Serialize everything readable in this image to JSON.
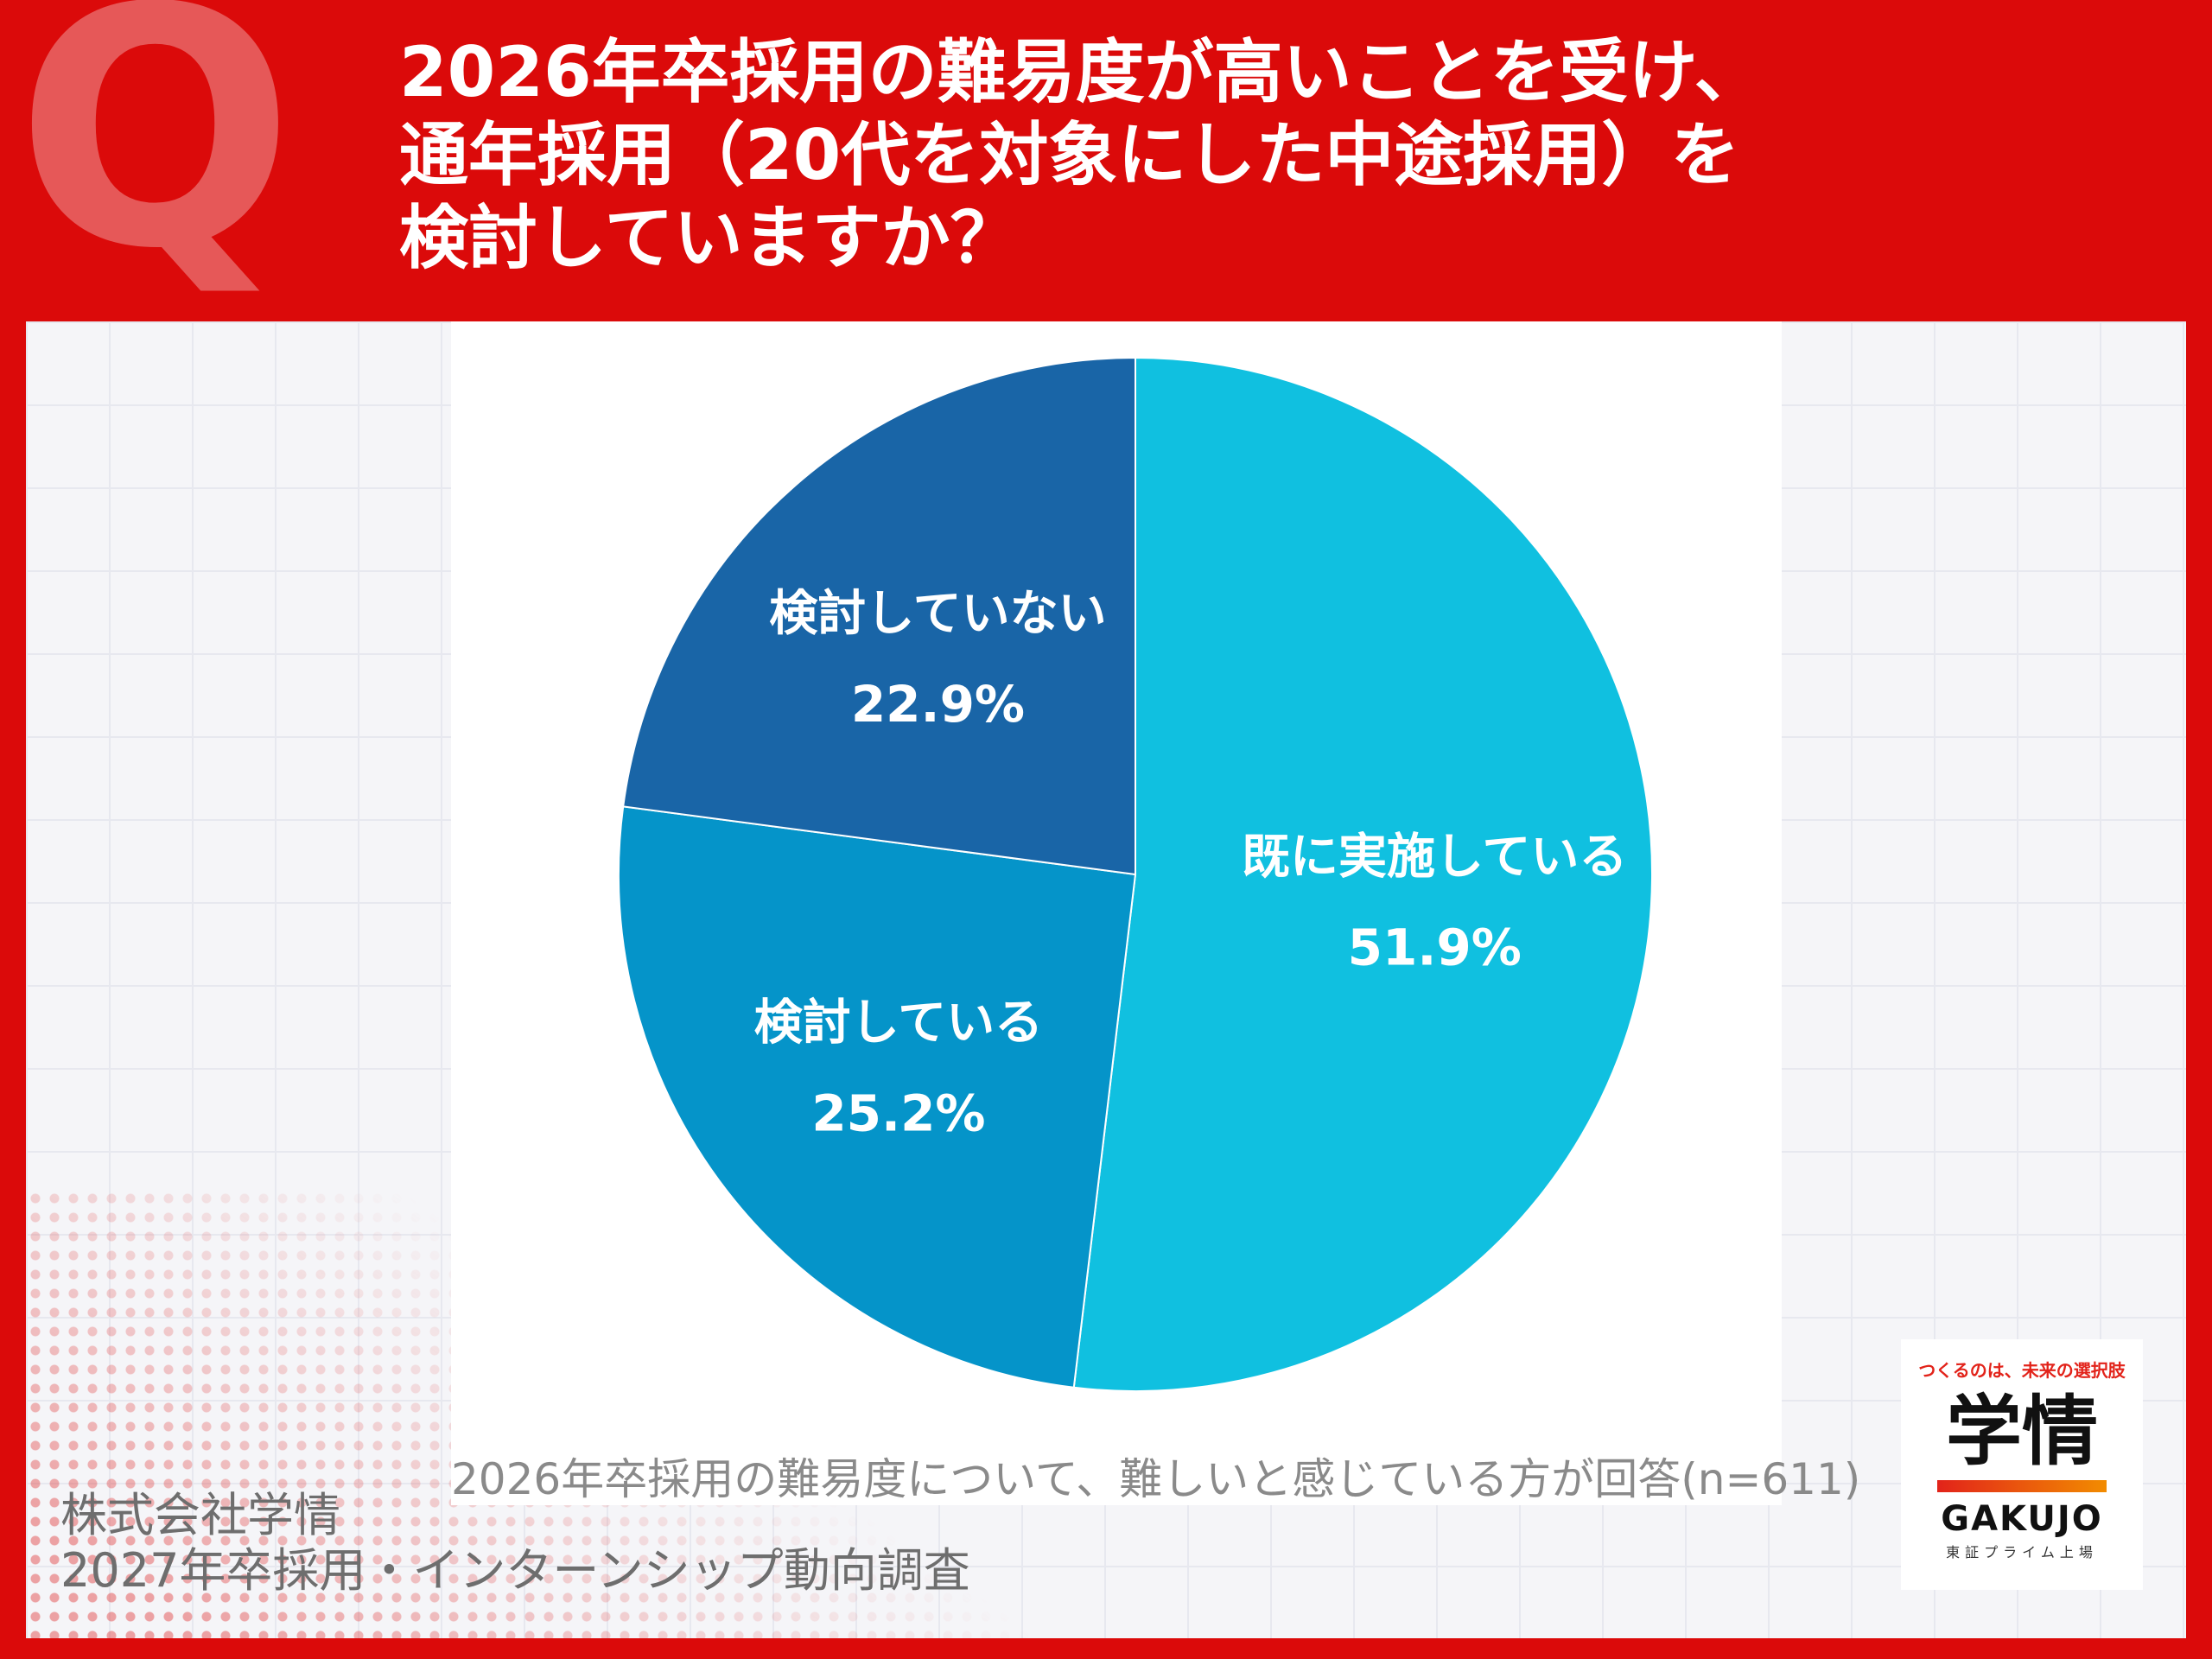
{
  "header": {
    "q_mark": "Q",
    "title_lines": [
      "2026年卒採用の難易度が高いことを受け、",
      "通年採用（20代を対象にした中途採用）を",
      "検討していますか？"
    ]
  },
  "chart_data": {
    "type": "pie",
    "slices": [
      {
        "label": "既に実施している",
        "value": 51.9,
        "value_label": "51.9%",
        "color": "#10c0e0"
      },
      {
        "label": "検討している",
        "value": 25.2,
        "value_label": "25.2%",
        "color": "#0594c9"
      },
      {
        "label": "検討していない",
        "value": 22.9,
        "value_label": "22.9%",
        "color": "#1965a7"
      }
    ],
    "caption": "2026年卒採用の難易度について、難しいと感じている方が回答(n=611)"
  },
  "source": {
    "company": "株式会社学情",
    "survey": "2027年卒採用・インターンシップ動向調査"
  },
  "logo": {
    "slogan": "つくるのは、未来の選択肢",
    "mark": "学情",
    "brand": "GAKUJO",
    "listing": "東証プライム上場"
  },
  "colors": {
    "background": "#db0a0a",
    "accent": "#e2231a"
  }
}
